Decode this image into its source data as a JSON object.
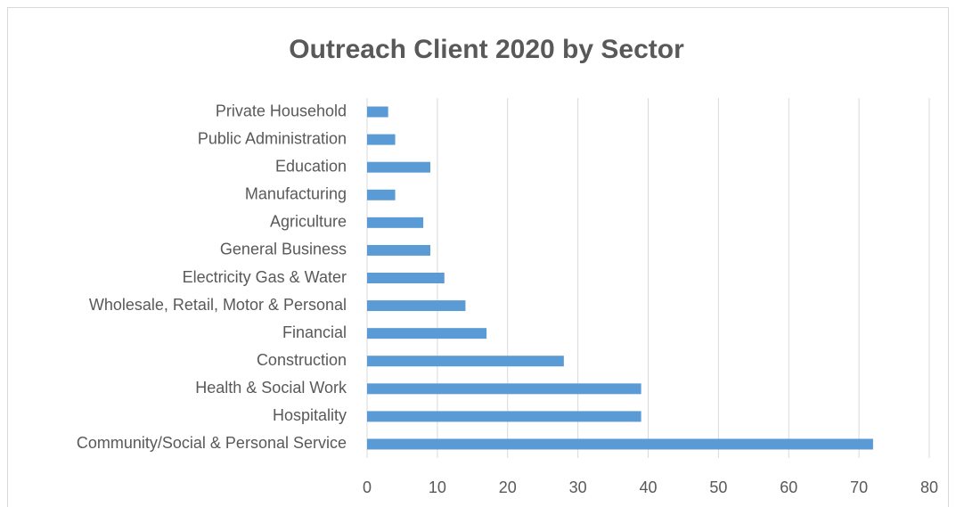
{
  "chart_data": {
    "type": "bar",
    "orientation": "horizontal",
    "title": "Outreach Client 2020 by Sector",
    "categories": [
      "Private Household",
      "Public Administration",
      "Education",
      "Manufacturing",
      "Agriculture",
      "General Business",
      "Electricity Gas & Water",
      "Wholesale, Retail, Motor & Personal",
      "Financial",
      "Construction",
      "Health & Social Work",
      "Hospitality",
      "Community/Social & Personal Service"
    ],
    "values": [
      3,
      4,
      9,
      4,
      8,
      9,
      11,
      14,
      17,
      28,
      39,
      39,
      72
    ],
    "color": "#5b9bd5",
    "xlim": [
      0,
      80
    ],
    "xticks": [
      0,
      10,
      20,
      30,
      40,
      50,
      60,
      70,
      80
    ],
    "grid": true
  }
}
